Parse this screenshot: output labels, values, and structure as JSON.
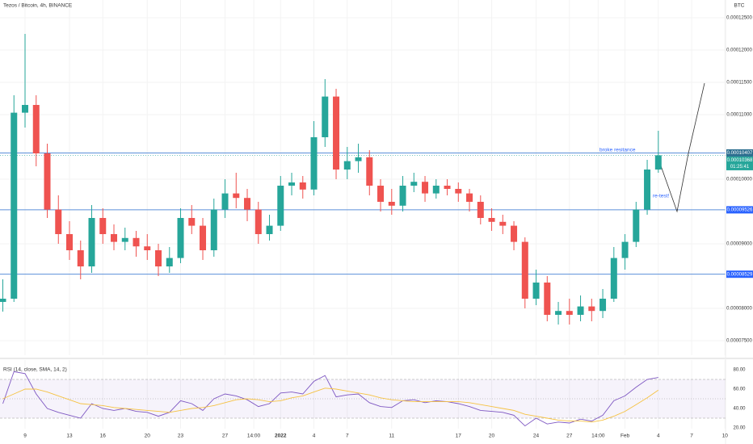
{
  "chart_data": [
    {
      "type": "candlestick",
      "title": "Tezos / Bitcoin, 4h, BINANCE",
      "y_unit": "BTC",
      "x": [
        7,
        8,
        9,
        10,
        11,
        12,
        13,
        14,
        15,
        16,
        17,
        18,
        19,
        20,
        21,
        22,
        23,
        24,
        25,
        26,
        27,
        28,
        29,
        30,
        31,
        32,
        33,
        34,
        35,
        36,
        37,
        38,
        39,
        40,
        41,
        42,
        43,
        44,
        45,
        46,
        47,
        48,
        49,
        50,
        51,
        52,
        53,
        54,
        55,
        56,
        57,
        58,
        59,
        60,
        61,
        62,
        63,
        64,
        65,
        66
      ],
      "open": [
        8.1e-05,
        8.15e-05,
        0.0001103,
        0.0001115,
        0.000104,
        9.53e-05,
        9.15e-05,
        8.9e-05,
        8.65e-05,
        9.4e-05,
        9.15e-05,
        9.03e-05,
        9.09e-05,
        8.96e-05,
        8.9e-05,
        8.65e-05,
        8.78e-05,
        9.4e-05,
        9.28e-05,
        8.9e-05,
        9.53e-05,
        9.78e-05,
        9.71e-05,
        9.53e-05,
        9.15e-05,
        9.28e-05,
        9.9e-05,
        9.95e-05,
        9.84e-05,
        0.0001065,
        0.0001128,
        0.0001015,
        0.0001028,
        0.0001034,
        9.9e-05,
        9.65e-05,
        9.59e-05,
        9.9e-05,
        9.96e-05,
        9.78e-05,
        9.9e-05,
        9.85e-05,
        9.78e-05,
        9.65e-05,
        9.4e-05,
        9.34e-05,
        9.28e-05,
        9.03e-05,
        8.15e-05,
        8.4e-05,
        7.9e-05,
        7.96e-05,
        7.9e-05,
        8.03e-05,
        7.96e-05,
        8.15e-05,
        8.78e-05,
        9.03e-05,
        9.53e-05,
        0.0001015
      ],
      "high": [
        8.45e-05,
        0.000113,
        0.0001225,
        0.000113,
        0.0001055,
        9.75e-05,
        9.35e-05,
        9.05e-05,
        9.6e-05,
        9.55e-05,
        9.3e-05,
        9.25e-05,
        9.2e-05,
        9.15e-05,
        9e-05,
        8.95e-05,
        9.55e-05,
        9.6e-05,
        9.4e-05,
        9.7e-05,
        0.0001,
        0.000101,
        9.85e-05,
        9.65e-05,
        9.45e-05,
        0.0001005,
        0.000101,
        0.0001005,
        0.000109,
        0.0001155,
        0.000114,
        0.000105,
        0.0001055,
        0.0001045,
        0.0001,
        9.85e-05,
        0.0001005,
        0.000101,
        0.0001005,
        0.0001,
        0.0001,
        9.95e-05,
        9.85e-05,
        9.75e-05,
        9.55e-05,
        9.45e-05,
        9.35e-05,
        9.1e-05,
        8.6e-05,
        8.5e-05,
        8.1e-05,
        8.15e-05,
        8.2e-05,
        8.15e-05,
        8.3e-05,
        8.95e-05,
        9.15e-05,
        9.65e-05,
        0.000103,
        0.0001075
      ],
      "low": [
        7.95e-05,
        8.1e-05,
        0.000108,
        0.000102,
        9.4e-05,
        9e-05,
        8.75e-05,
        8.45e-05,
        8.55e-05,
        9e-05,
        8.9e-05,
        8.9e-05,
        8.8e-05,
        8.75e-05,
        8.5e-05,
        8.55e-05,
        8.7e-05,
        9.15e-05,
        8.75e-05,
        8.8e-05,
        9.4e-05,
        9.55e-05,
        9.35e-05,
        9e-05,
        9.05e-05,
        9.2e-05,
        9.75e-05,
        9.7e-05,
        9.75e-05,
        0.000105,
        0.0001,
        0.0001,
        0.000101,
        9.75e-05,
        9.5e-05,
        9.45e-05,
        9.5e-05,
        9.8e-05,
        9.65e-05,
        9.7e-05,
        9.75e-05,
        9.65e-05,
        9.5e-05,
        9.3e-05,
        9.2e-05,
        9.15e-05,
        8.9e-05,
        8e-05,
        8.05e-05,
        7.8e-05,
        7.75e-05,
        7.75e-05,
        7.8e-05,
        7.8e-05,
        7.85e-05,
        8.1e-05,
        8.6e-05,
        8.95e-05,
        9.45e-05,
        0.000101
      ],
      "close": [
        8.15e-05,
        0.0001103,
        0.0001115,
        0.000104,
        9.53e-05,
        9.15e-05,
        8.9e-05,
        8.65e-05,
        9.4e-05,
        9.15e-05,
        9.03e-05,
        9.09e-05,
        8.96e-05,
        8.9e-05,
        8.65e-05,
        8.78e-05,
        9.4e-05,
        9.28e-05,
        8.9e-05,
        9.53e-05,
        9.78e-05,
        9.71e-05,
        9.53e-05,
        9.15e-05,
        9.28e-05,
        9.9e-05,
        9.95e-05,
        9.84e-05,
        0.0001065,
        0.0001128,
        0.0001015,
        0.0001028,
        0.0001034,
        9.9e-05,
        9.65e-05,
        9.59e-05,
        9.9e-05,
        9.96e-05,
        9.78e-05,
        9.9e-05,
        9.85e-05,
        9.78e-05,
        9.65e-05,
        9.4e-05,
        9.34e-05,
        9.28e-05,
        9.03e-05,
        8.15e-05,
        8.4e-05,
        7.9e-05,
        7.96e-05,
        7.9e-05,
        8.03e-05,
        7.96e-05,
        8.15e-05,
        8.78e-05,
        9.03e-05,
        9.53e-05,
        0.0001015,
        0.0001037
      ],
      "up_color": "#26a69a",
      "down_color": "#ef5350",
      "xlim": [
        6.745,
        72.05
      ],
      "xticks": [
        9,
        13,
        16,
        20,
        23,
        27,
        {
          "value": 29.583,
          "label": "14:00"
        },
        {
          "value": 32,
          "label": "2022"
        },
        {
          "value": 35,
          "label": "4"
        },
        {
          "value": 38,
          "label": "7"
        },
        {
          "value": 42,
          "label": "11"
        },
        {
          "value": 48,
          "label": "17"
        },
        {
          "value": 51,
          "label": "20"
        },
        {
          "value": 55,
          "label": "24"
        },
        {
          "value": 58,
          "label": "27"
        },
        {
          "value": 60.583,
          "label": "14:00"
        },
        {
          "value": 63,
          "label": "Feb"
        },
        {
          "value": 66,
          "label": "4"
        },
        {
          "value": 69,
          "label": "7"
        },
        {
          "value": 72,
          "label": "10"
        }
      ],
      "ylim": [
        7.275e-05,
        0.00012775
      ],
      "yticks": [
        {
          "value": 0.000125,
          "label": "0.00012500"
        },
        {
          "value": 0.00012,
          "label": "0.00012000"
        },
        {
          "value": 0.000115,
          "label": "0.00011500"
        },
        {
          "value": 0.00011,
          "label": "0.00011000"
        },
        {
          "value": 0.0001,
          "label": "0.00010000"
        },
        {
          "value": 9e-05,
          "label": "0.00009000"
        },
        {
          "value": 8e-05,
          "label": "0.00008000"
        },
        {
          "value": 7.5e-05,
          "label": "0.00007500"
        }
      ],
      "grid": true,
      "levels": [
        {
          "value": 0.00010407,
          "label": "0.00010407",
          "color": "#2b6e8f"
        },
        {
          "value": 9.526e-05,
          "label": "0.00009526",
          "color": "#2962ff"
        },
        {
          "value": 8.529e-05,
          "label": "0.00008529",
          "color": "#2962ff"
        }
      ],
      "last_price": {
        "value": 0.00010368,
        "label": "0.00010368",
        "countdown": "01:25:41",
        "color": "#26a69a"
      },
      "annotations": [
        "broke resitance",
        "re-test!"
      ]
    },
    {
      "type": "line",
      "title": "RSI (14, close, SMA, 14, 2)",
      "series": [
        {
          "color": "#7e57c2",
          "values": [
            45,
            78,
            76,
            55,
            40,
            36,
            33,
            30,
            45,
            40,
            38,
            40,
            37,
            36,
            32,
            36,
            48,
            45,
            38,
            50,
            55,
            53,
            49,
            42,
            45,
            56,
            57,
            55,
            68,
            74,
            52,
            54,
            55,
            46,
            42,
            41,
            48,
            49,
            46,
            48,
            47,
            45,
            42,
            38,
            37,
            36,
            33,
            22,
            30,
            24,
            26,
            25,
            29,
            27,
            33,
            48,
            53,
            62,
            70,
            72
          ]
        },
        {
          "color": "#f5c242",
          "values": [
            50,
            55,
            60,
            60,
            57,
            53,
            49,
            45,
            44,
            43,
            41,
            40,
            39,
            38,
            37,
            36,
            38,
            40,
            41,
            43,
            46,
            49,
            50,
            49,
            47,
            48,
            51,
            53,
            57,
            61,
            60,
            58,
            56,
            54,
            51,
            49,
            48,
            47,
            47,
            47,
            47,
            47,
            46,
            44,
            42,
            40,
            38,
            34,
            32,
            30,
            28,
            27,
            27,
            26,
            28,
            32,
            37,
            44,
            51,
            59
          ]
        }
      ],
      "ylim": [
        19,
        88
      ],
      "yticks": [
        {
          "value": 80,
          "label": "80.00"
        },
        {
          "value": 60,
          "label": "60.00"
        },
        {
          "value": 40,
          "label": "40.00"
        },
        {
          "value": 20,
          "label": "20.00"
        }
      ],
      "levels": [
        70,
        50,
        30
      ],
      "band_color": "#7e57c2"
    }
  ]
}
